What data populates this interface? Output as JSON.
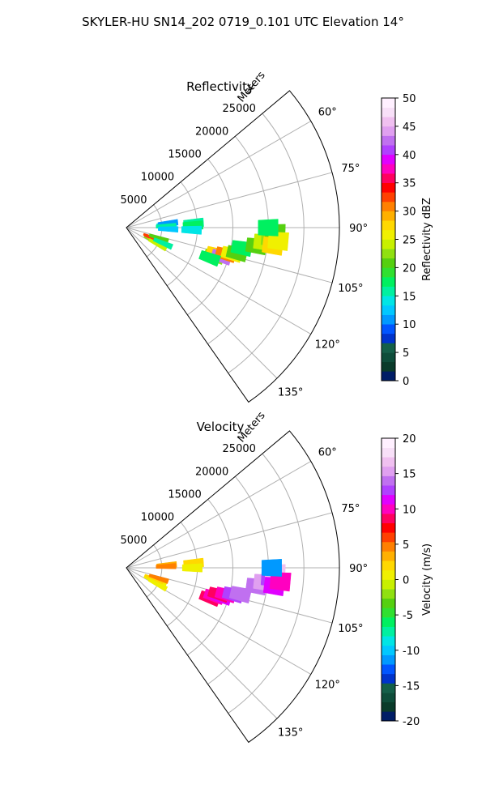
{
  "figure_title": "SKYLER-HU  SN14_202  0719_0.101 UTC Elevation 14°",
  "chart_data": [
    {
      "type": "heatmap",
      "subtype": "polar-sector",
      "title": "Reflectivity",
      "range_axis_label": "Meters",
      "range_ticks": [
        5000,
        10000,
        15000,
        20000,
        25000
      ],
      "range_lim": [
        0,
        30000
      ],
      "angle_lim": [
        50,
        145
      ],
      "angle_ticks": [
        "60°",
        "75°",
        "90°",
        "105°",
        "120°",
        "135°"
      ],
      "angle_tick_values": [
        60,
        75,
        90,
        105,
        120,
        135
      ],
      "grid": true,
      "colorbar": {
        "label": "Reflectivity dBZ",
        "min": 0,
        "max": 50,
        "ticks": [
          0,
          5,
          10,
          15,
          20,
          25,
          30,
          35,
          40,
          45,
          50
        ],
        "colors": [
          "#001d66",
          "#0a3b2a",
          "#0e4d3a",
          "#145f49",
          "#0033cc",
          "#0055ff",
          "#0099ff",
          "#00c8ff",
          "#00e5e5",
          "#00f0a0",
          "#00f060",
          "#30e030",
          "#55d010",
          "#90e010",
          "#c8f000",
          "#f0f000",
          "#ffd800",
          "#ffb000",
          "#ff8000",
          "#ff4000",
          "#ff0000",
          "#ff0060",
          "#ff00c0",
          "#e000ff",
          "#b040ff",
          "#c070f0",
          "#e0a0f0",
          "#f0c0f0",
          "#f8e0f8",
          "#fff0ff"
        ]
      },
      "cells": [
        {
          "angle": 86,
          "range": 5700,
          "value": 14
        },
        {
          "angle": 84,
          "range": 5900,
          "value": 10
        },
        {
          "angle": 88,
          "range": 5600,
          "value": 16
        },
        {
          "angle": 92,
          "range": 5900,
          "value": 12
        },
        {
          "angle": 86,
          "range": 9500,
          "value": 15
        },
        {
          "angle": 88,
          "range": 9400,
          "value": 18
        },
        {
          "angle": 92,
          "range": 9200,
          "value": 14
        },
        {
          "angle": 116,
          "range": 4200,
          "value": 22
        },
        {
          "angle": 113,
          "range": 4700,
          "value": 28
        },
        {
          "angle": 112,
          "range": 4200,
          "value": 35
        },
        {
          "angle": 111,
          "range": 4000,
          "value": 32
        },
        {
          "angle": 108,
          "range": 4800,
          "value": 20
        },
        {
          "angle": 118,
          "range": 5000,
          "value": 24
        },
        {
          "angle": 113,
          "range": 5600,
          "value": 16
        },
        {
          "angle": 108,
          "range": 13000,
          "value": 22
        },
        {
          "angle": 106,
          "range": 13200,
          "value": 28
        },
        {
          "angle": 107,
          "range": 14000,
          "value": 42
        },
        {
          "angle": 105,
          "range": 14500,
          "value": 30
        },
        {
          "angle": 104,
          "range": 15300,
          "value": 26
        },
        {
          "angle": 103,
          "range": 16000,
          "value": 20
        },
        {
          "angle": 110,
          "range": 12500,
          "value": 18
        },
        {
          "angle": 100,
          "range": 16500,
          "value": 18
        },
        {
          "angle": 98,
          "range": 18500,
          "value": 20
        },
        {
          "angle": 96,
          "range": 19500,
          "value": 24
        },
        {
          "angle": 94,
          "range": 20500,
          "value": 22
        },
        {
          "angle": 92,
          "range": 21000,
          "value": 20
        },
        {
          "angle": 97,
          "range": 20800,
          "value": 28
        },
        {
          "angle": 95,
          "range": 21500,
          "value": 26
        },
        {
          "angle": 90,
          "range": 20000,
          "value": 18
        }
      ]
    },
    {
      "type": "heatmap",
      "subtype": "polar-sector",
      "title": "Velocity",
      "range_axis_label": "Meters",
      "range_ticks": [
        5000,
        10000,
        15000,
        20000,
        25000
      ],
      "range_lim": [
        0,
        30000
      ],
      "angle_lim": [
        50,
        145
      ],
      "angle_ticks": [
        "60°",
        "75°",
        "90°",
        "105°",
        "120°",
        "135°"
      ],
      "angle_tick_values": [
        60,
        75,
        90,
        105,
        120,
        135
      ],
      "grid": true,
      "colorbar": {
        "label": "Velocity (m/s)",
        "min": -20,
        "max": 20,
        "ticks": [
          -20,
          -15,
          -10,
          -5,
          0,
          5,
          10,
          15,
          20
        ],
        "colors": [
          "#001d66",
          "#0a3b2a",
          "#0e4d3a",
          "#145f49",
          "#0033cc",
          "#0055ff",
          "#0099ff",
          "#00c8ff",
          "#00e5e5",
          "#00f0a0",
          "#00f060",
          "#30e030",
          "#55d010",
          "#90e010",
          "#c8f000",
          "#f0f000",
          "#ffd800",
          "#ffb000",
          "#ff8000",
          "#ff4000",
          "#ff0000",
          "#ff0060",
          "#ff00c0",
          "#e000ff",
          "#b040ff",
          "#c070f0",
          "#e0a0f0",
          "#f0c0f0",
          "#f8e0f8",
          "#fff0ff"
        ]
      },
      "cells": [
        {
          "angle": 86,
          "range": 5700,
          "value": 3
        },
        {
          "angle": 88,
          "range": 5600,
          "value": 4
        },
        {
          "angle": 86,
          "range": 9500,
          "value": 2
        },
        {
          "angle": 90,
          "range": 9300,
          "value": 1
        },
        {
          "angle": 116,
          "range": 4200,
          "value": 1
        },
        {
          "angle": 113,
          "range": 4700,
          "value": 0
        },
        {
          "angle": 112,
          "range": 4200,
          "value": 2
        },
        {
          "angle": 108,
          "range": 4800,
          "value": 4
        },
        {
          "angle": 118,
          "range": 5000,
          "value": 1
        },
        {
          "angle": 110,
          "range": 12500,
          "value": 8
        },
        {
          "angle": 108,
          "range": 13000,
          "value": 10
        },
        {
          "angle": 107,
          "range": 14000,
          "value": 11
        },
        {
          "angle": 106,
          "range": 13500,
          "value": 9
        },
        {
          "angle": 105,
          "range": 14500,
          "value": 10
        },
        {
          "angle": 104,
          "range": 15500,
          "value": 12
        },
        {
          "angle": 103,
          "range": 16500,
          "value": 14
        },
        {
          "angle": 98,
          "range": 18500,
          "value": 14
        },
        {
          "angle": 96,
          "range": 19500,
          "value": 15
        },
        {
          "angle": 94,
          "range": 20500,
          "value": 13
        },
        {
          "angle": 92,
          "range": 21000,
          "value": 16
        },
        {
          "angle": 97,
          "range": 21000,
          "value": 11
        },
        {
          "angle": 95,
          "range": 21800,
          "value": 10
        },
        {
          "angle": 90,
          "range": 20500,
          "value": -12
        }
      ]
    }
  ]
}
